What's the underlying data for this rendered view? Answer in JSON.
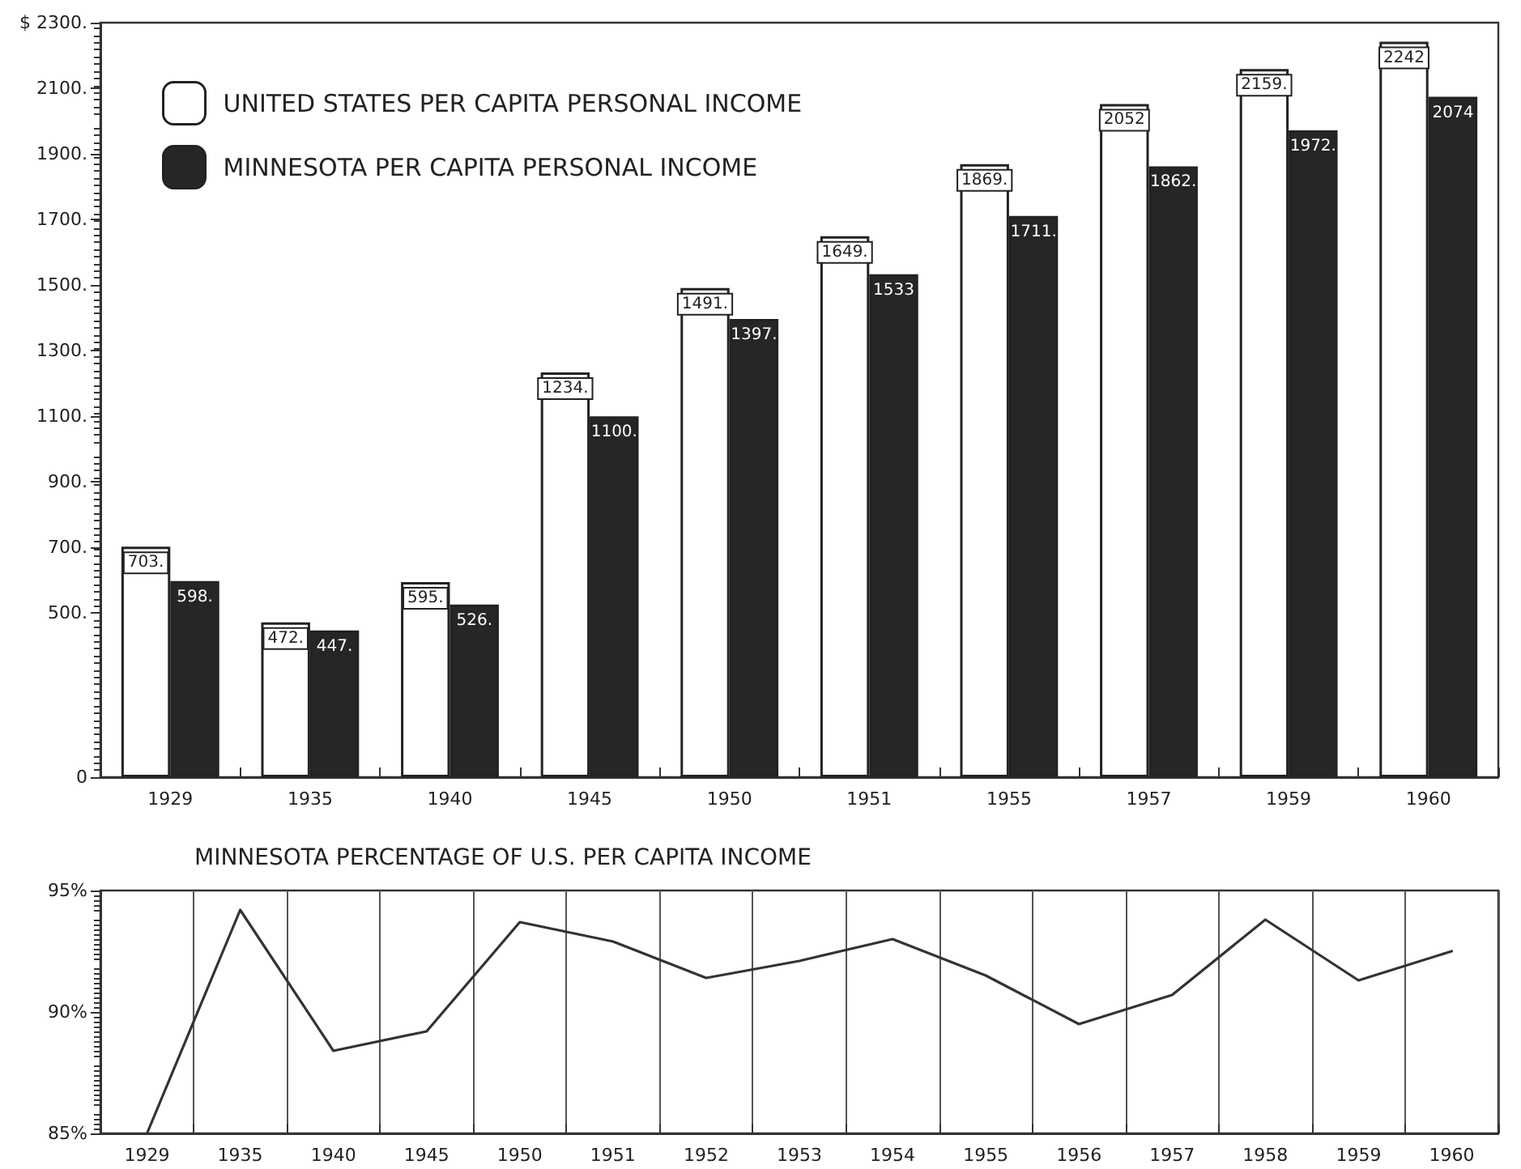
{
  "chart_data": [
    {
      "type": "bar",
      "categories": [
        "1929",
        "1935",
        "1940",
        "1945",
        "1950",
        "1951",
        "1955",
        "1957",
        "1959",
        "1960"
      ],
      "series": [
        {
          "name": "UNITED STATES PER CAPITA PERSONAL INCOME",
          "color": "#ffffff",
          "values": [
            703,
            472,
            595,
            1234,
            1491,
            1649,
            1869,
            2052,
            2159,
            2242
          ],
          "value_labels": [
            "703.",
            "472.",
            "595.",
            "1234.",
            "1491.",
            "1649.",
            "1869.",
            "2052",
            "2159.",
            "2242"
          ]
        },
        {
          "name": "MINNESOTA PER CAPITA PERSONAL INCOME",
          "color": "#262626",
          "values": [
            598,
            447,
            526,
            1100,
            1397,
            1533,
            1711,
            1862,
            1972,
            2074
          ],
          "value_labels": [
            "598.",
            "447.",
            "526.",
            "1100.",
            "1397.",
            "1533",
            "1711.",
            "1862.",
            "1972.",
            "2074"
          ]
        }
      ],
      "ylim": [
        0,
        2300
      ],
      "yticks": [
        0,
        {
          "value": 500,
          "label": "500."
        },
        {
          "value": 700,
          "label": "700."
        },
        {
          "value": 900,
          "label": "900."
        },
        {
          "value": 1100,
          "label": "1100."
        },
        {
          "value": 1300,
          "label": "1300."
        },
        {
          "value": 1500,
          "label": "1500."
        },
        {
          "value": 1700,
          "label": "1700."
        },
        {
          "value": 1900,
          "label": "1900."
        },
        {
          "value": 2100,
          "label": "2100."
        },
        {
          "value": 2300,
          "label": "$ 2300."
        }
      ],
      "legend": "top left",
      "grid": false
    },
    {
      "type": "line",
      "title": "MINNESOTA PERCENTAGE OF U.S. PER CAPITA INCOME",
      "categories": [
        "1929",
        "1935",
        "1940",
        "1945",
        "1950",
        "1951",
        "1952",
        "1953",
        "1954",
        "1955",
        "1956",
        "1957",
        "1958",
        "1959",
        "1960"
      ],
      "series": [
        {
          "color": "#333333",
          "values": [
            85.0,
            94.2,
            88.4,
            89.2,
            93.7,
            92.9,
            91.4,
            92.1,
            93.0,
            91.5,
            89.5,
            90.7,
            93.8,
            91.3,
            92.5
          ]
        }
      ],
      "ylim": [
        85,
        95
      ],
      "yticks": [
        {
          "value": 85,
          "label": "85%"
        },
        {
          "value": 90,
          "label": "90%"
        },
        {
          "value": 95,
          "label": "95%"
        }
      ],
      "grid": "x",
      "marker": "none",
      "line_style": "solid",
      "legend": false
    }
  ]
}
